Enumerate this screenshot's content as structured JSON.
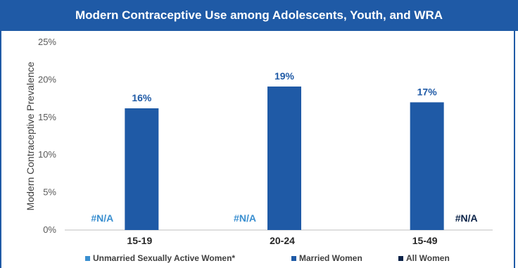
{
  "chart_data": {
    "type": "bar",
    "title": "Modern Contraceptive Use among Adolescents, Youth, and WRA",
    "ylabel": "Modern Contraceptive Prevalence",
    "xlabel": "",
    "ylim": [
      0,
      25
    ],
    "yticks": [
      "0%",
      "5%",
      "10%",
      "15%",
      "20%",
      "25%"
    ],
    "categories": [
      "15-19",
      "20-24",
      "15-49"
    ],
    "series": [
      {
        "name": "Unmarried Sexually Active Women*",
        "color": "#3a8fd0",
        "values": [
          null,
          null,
          null
        ],
        "labels": [
          "#N/A",
          "#N/A",
          ""
        ]
      },
      {
        "name": "Married Women",
        "color": "#1f5aa6",
        "values": [
          16.2,
          19.1,
          17.0
        ],
        "labels": [
          "16%",
          "19%",
          "17%"
        ]
      },
      {
        "name": "All Women",
        "color": "#0b2348",
        "values": [
          null,
          null,
          null
        ],
        "labels": [
          "",
          "",
          "#N/A"
        ]
      }
    ],
    "grid": false,
    "legend": "bottom"
  }
}
